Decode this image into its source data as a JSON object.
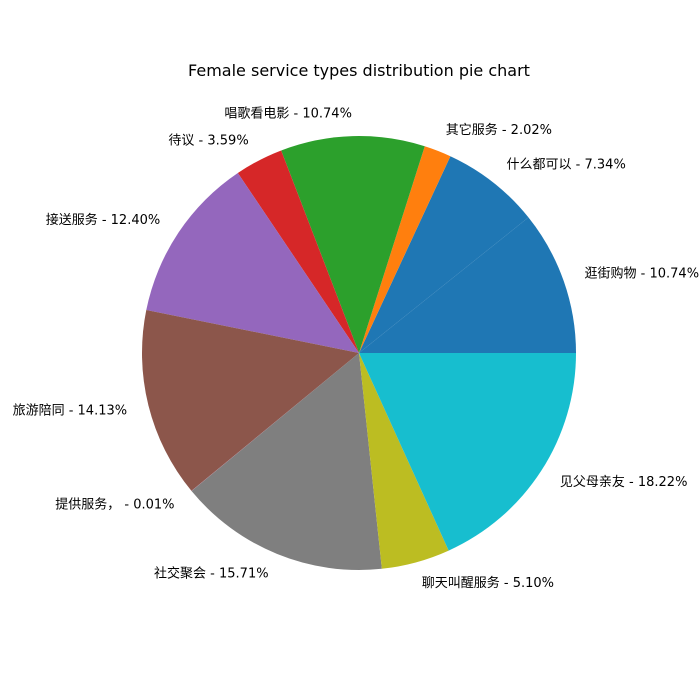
{
  "chart_data": {
    "type": "pie",
    "title": "Female service types distribution pie chart",
    "labels": [
      "逛街购物 - 10.74%",
      "什么都可以 - 7.34%",
      "其它服务 - 2.02%",
      "唱歌看电影 - 10.74%",
      "待议 - 3.59%",
      "接送服务 - 12.40%",
      "旅游陪同 - 14.13%",
      "提供服务， - 0.01%",
      "社交聚会 - 15.71%",
      "聊天叫醒服务 - 5.10%",
      "见父母亲友 - 18.22%"
    ],
    "values": [
      10.74,
      7.34,
      2.02,
      10.74,
      3.59,
      12.4,
      14.13,
      0.01,
      15.71,
      5.1,
      18.22
    ],
    "colors": [
      "#1f77b4",
      "#1f77b4",
      "#ff7f0e",
      "#2ca02c",
      "#d62728",
      "#9467bd",
      "#8c564b",
      "#e377c2",
      "#7f7f7f",
      "#bcbd22",
      "#17becf"
    ],
    "start_angle_deg": 0,
    "direction": "counterclockwise"
  }
}
